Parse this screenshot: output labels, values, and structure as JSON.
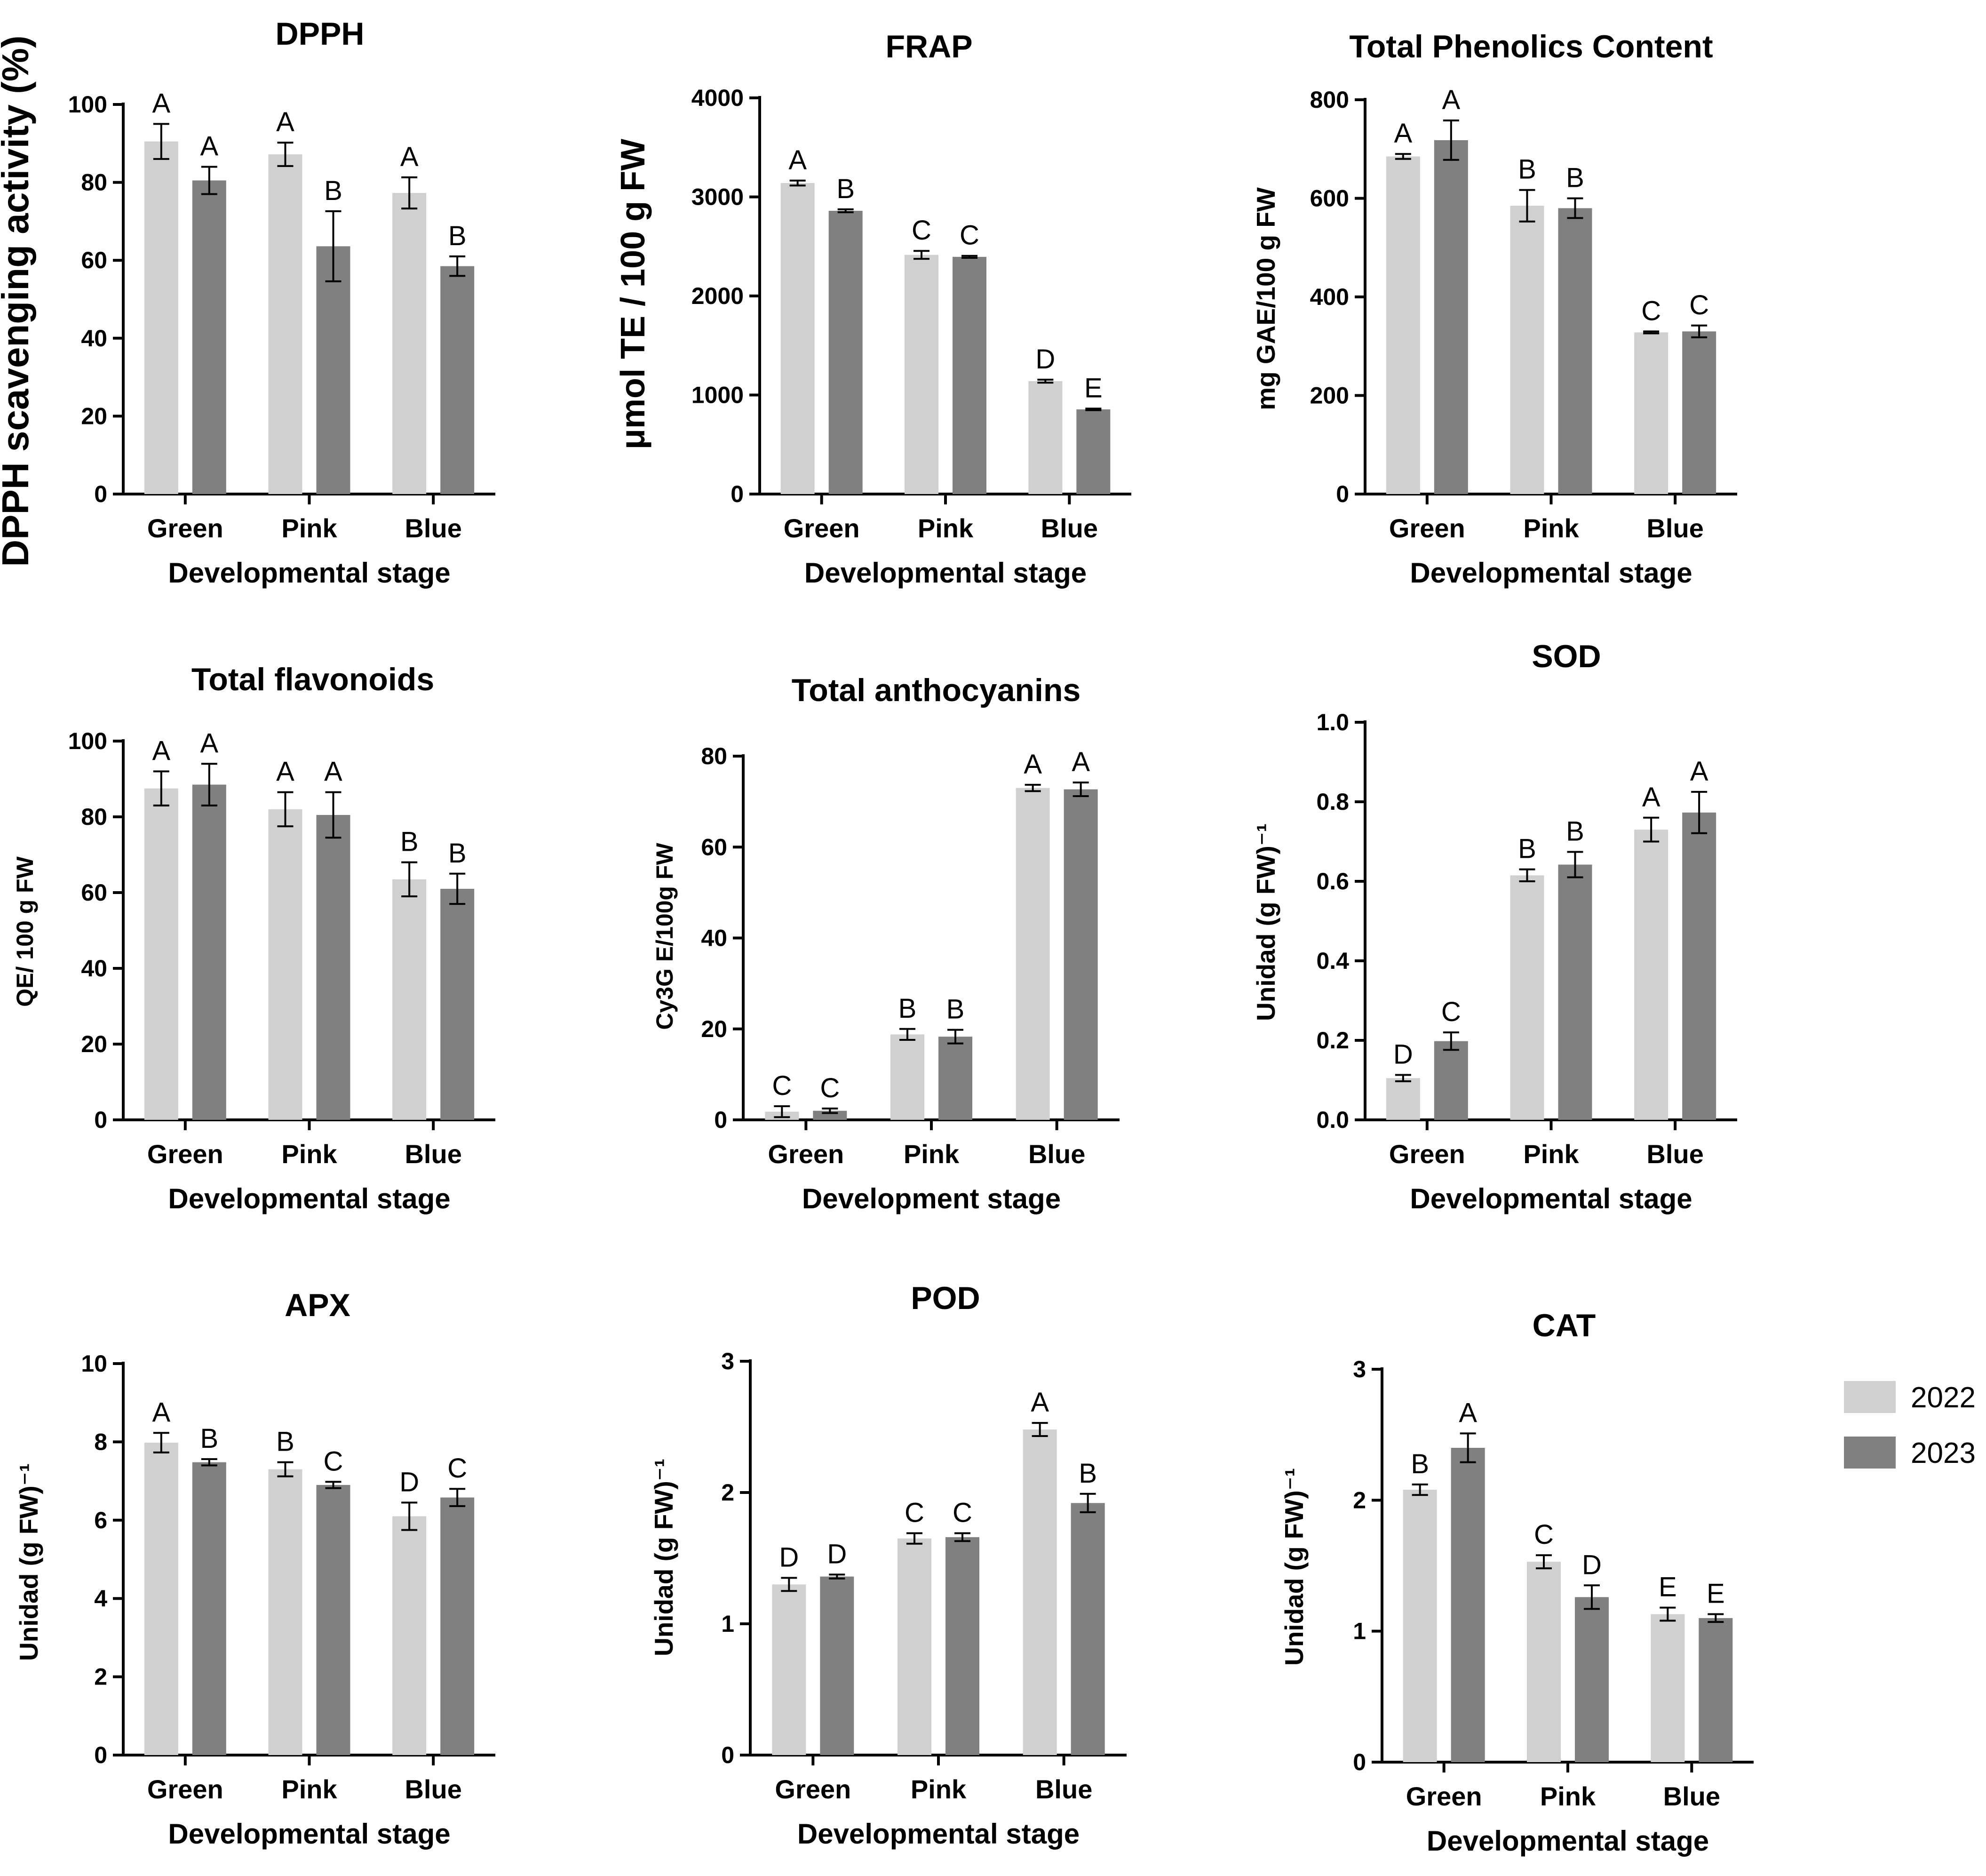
{
  "legend": [
    {
      "label": "2022",
      "color": "#d0d0d0"
    },
    {
      "label": "2023",
      "color": "#808080"
    }
  ],
  "chart_data": [
    {
      "type": "bar",
      "title": "DPPH",
      "ylabel": "DPPH scavenging activity (%)",
      "xlabel": "Developmental stage",
      "categories": [
        "Green",
        "Pink",
        "Blue"
      ],
      "ylim": [
        0,
        100
      ],
      "yticks": [
        "0",
        "20",
        "40",
        "60",
        "80",
        "100"
      ],
      "series": [
        {
          "name": "2022",
          "values": [
            90.5,
            87.2,
            77.3
          ],
          "errors": [
            4.5,
            3.0,
            4.0
          ],
          "letters": [
            "A",
            "A",
            "A"
          ]
        },
        {
          "name": "2023",
          "values": [
            80.5,
            63.6,
            58.5
          ],
          "errors": [
            3.5,
            9.0,
            2.5
          ],
          "letters": [
            "A",
            "B",
            "B"
          ]
        }
      ]
    },
    {
      "type": "bar",
      "title": "FRAP",
      "ylabel": "μmol TE / 100 g  FW",
      "xlabel": "Developmental stage",
      "categories": [
        "Green",
        "Pink",
        "Blue"
      ],
      "ylim": [
        0,
        4000
      ],
      "yticks": [
        "0",
        "1000",
        "2000",
        "3000",
        "4000"
      ],
      "series": [
        {
          "name": "2022",
          "values": [
            3140,
            2415,
            1140
          ],
          "errors": [
            25,
            40,
            15
          ],
          "letters": [
            "A",
            "C",
            "D"
          ]
        },
        {
          "name": "2023",
          "values": [
            2860,
            2395,
            855
          ],
          "errors": [
            15,
            10,
            8
          ],
          "letters": [
            "B",
            "C",
            "E"
          ]
        }
      ]
    },
    {
      "type": "bar",
      "title": "Total Phenolics Content",
      "ylabel": "mg GAE/100 g FW",
      "xlabel": "Developmental stage",
      "categories": [
        "Green",
        "Pink",
        "Blue"
      ],
      "ylim": [
        0,
        800
      ],
      "yticks": [
        "0",
        "200",
        "400",
        "600",
        "800"
      ],
      "series": [
        {
          "name": "2022",
          "values": [
            685,
            585,
            328
          ],
          "errors": [
            5,
            32,
            2
          ],
          "letters": [
            "A",
            "B",
            "C"
          ]
        },
        {
          "name": "2023",
          "values": [
            718,
            580,
            330
          ],
          "errors": [
            40,
            20,
            12
          ],
          "letters": [
            "A",
            "B",
            "C"
          ]
        }
      ]
    },
    {
      "type": "bar",
      "title": "Total flavonoids",
      "ylabel": "QE/ 100 g FW",
      "xlabel": "Developmental stage",
      "categories": [
        "Green",
        "Pink",
        "Blue"
      ],
      "ylim": [
        0,
        100
      ],
      "yticks": [
        "0",
        "20",
        "40",
        "60",
        "80",
        "100"
      ],
      "series": [
        {
          "name": "2022",
          "values": [
            87.5,
            82.0,
            63.5
          ],
          "errors": [
            4.5,
            4.5,
            4.5
          ],
          "letters": [
            "A",
            "A",
            "B"
          ]
        },
        {
          "name": "2023",
          "values": [
            88.5,
            80.5,
            61.0
          ],
          "errors": [
            5.5,
            6.0,
            4.0
          ],
          "letters": [
            "A",
            "A",
            "B"
          ]
        }
      ]
    },
    {
      "type": "bar",
      "title": "Total anthocyanins",
      "ylabel": "Cy3G E/100g FW",
      "xlabel": "Development stage",
      "categories": [
        "Green",
        "Pink",
        "Blue"
      ],
      "ylim": [
        0,
        80
      ],
      "yticks": [
        "0",
        "20",
        "40",
        "60",
        "80"
      ],
      "series": [
        {
          "name": "2022",
          "values": [
            1.8,
            18.8,
            73.0
          ],
          "errors": [
            1.2,
            1.2,
            0.7
          ],
          "letters": [
            "C",
            "B",
            "A"
          ]
        },
        {
          "name": "2023",
          "values": [
            2.0,
            18.3,
            72.7
          ],
          "errors": [
            0.5,
            1.5,
            1.5
          ],
          "letters": [
            "C",
            "B",
            "A"
          ]
        }
      ]
    },
    {
      "type": "bar",
      "title": "SOD",
      "ylabel": "Unidad (g FW)⁻¹",
      "xlabel": "Developmental stage",
      "categories": [
        "Green",
        "Pink",
        "Blue"
      ],
      "ylim": [
        0,
        1.0
      ],
      "yticks": [
        "0.0",
        "0.2",
        "0.4",
        "0.6",
        "0.8",
        "1.0"
      ],
      "series": [
        {
          "name": "2022",
          "values": [
            0.105,
            0.615,
            0.73
          ],
          "errors": [
            0.008,
            0.015,
            0.03
          ],
          "letters": [
            "D",
            "B",
            "A"
          ]
        },
        {
          "name": "2023",
          "values": [
            0.198,
            0.642,
            0.773
          ],
          "errors": [
            0.022,
            0.032,
            0.052
          ],
          "letters": [
            "C",
            "B",
            "A"
          ]
        }
      ]
    },
    {
      "type": "bar",
      "title": "APX",
      "ylabel": "Unidad (g FW)⁻¹",
      "xlabel": "Developmental stage",
      "categories": [
        "Green",
        "Pink",
        "Blue"
      ],
      "ylim": [
        0,
        10
      ],
      "yticks": [
        "0",
        "2",
        "4",
        "6",
        "8",
        "10"
      ],
      "series": [
        {
          "name": "2022",
          "values": [
            7.98,
            7.3,
            6.1
          ],
          "errors": [
            0.25,
            0.18,
            0.35
          ],
          "letters": [
            "A",
            "B",
            "D"
          ]
        },
        {
          "name": "2023",
          "values": [
            7.48,
            6.9,
            6.58
          ],
          "errors": [
            0.08,
            0.08,
            0.22
          ],
          "letters": [
            "B",
            "C",
            "C"
          ]
        }
      ]
    },
    {
      "type": "bar",
      "title": "POD",
      "ylabel": "Unidad (g FW)⁻¹",
      "xlabel": "Developmental stage",
      "categories": [
        "Green",
        "Pink",
        "Blue"
      ],
      "ylim": [
        0,
        3
      ],
      "yticks": [
        "0",
        "1",
        "2",
        "3"
      ],
      "series": [
        {
          "name": "2022",
          "values": [
            1.3,
            1.65,
            2.48
          ],
          "errors": [
            0.05,
            0.04,
            0.05
          ],
          "letters": [
            "D",
            "C",
            "A"
          ]
        },
        {
          "name": "2023",
          "values": [
            1.36,
            1.66,
            1.92
          ],
          "errors": [
            0.015,
            0.03,
            0.07
          ],
          "letters": [
            "D",
            "C",
            "B"
          ]
        }
      ]
    },
    {
      "type": "bar",
      "title": "CAT",
      "ylabel": "Unidad (g FW)⁻¹",
      "xlabel": "Developmental stage",
      "categories": [
        "Green",
        "Pink",
        "Blue"
      ],
      "ylim": [
        0,
        3
      ],
      "yticks": [
        "0",
        "1",
        "2",
        "3"
      ],
      "series": [
        {
          "name": "2022",
          "values": [
            2.08,
            1.53,
            1.13
          ],
          "errors": [
            0.04,
            0.05,
            0.05
          ],
          "letters": [
            "B",
            "C",
            "E"
          ]
        },
        {
          "name": "2023",
          "values": [
            2.4,
            1.26,
            1.1
          ],
          "errors": [
            0.11,
            0.09,
            0.03
          ],
          "letters": [
            "A",
            "D",
            "E"
          ]
        }
      ]
    }
  ]
}
